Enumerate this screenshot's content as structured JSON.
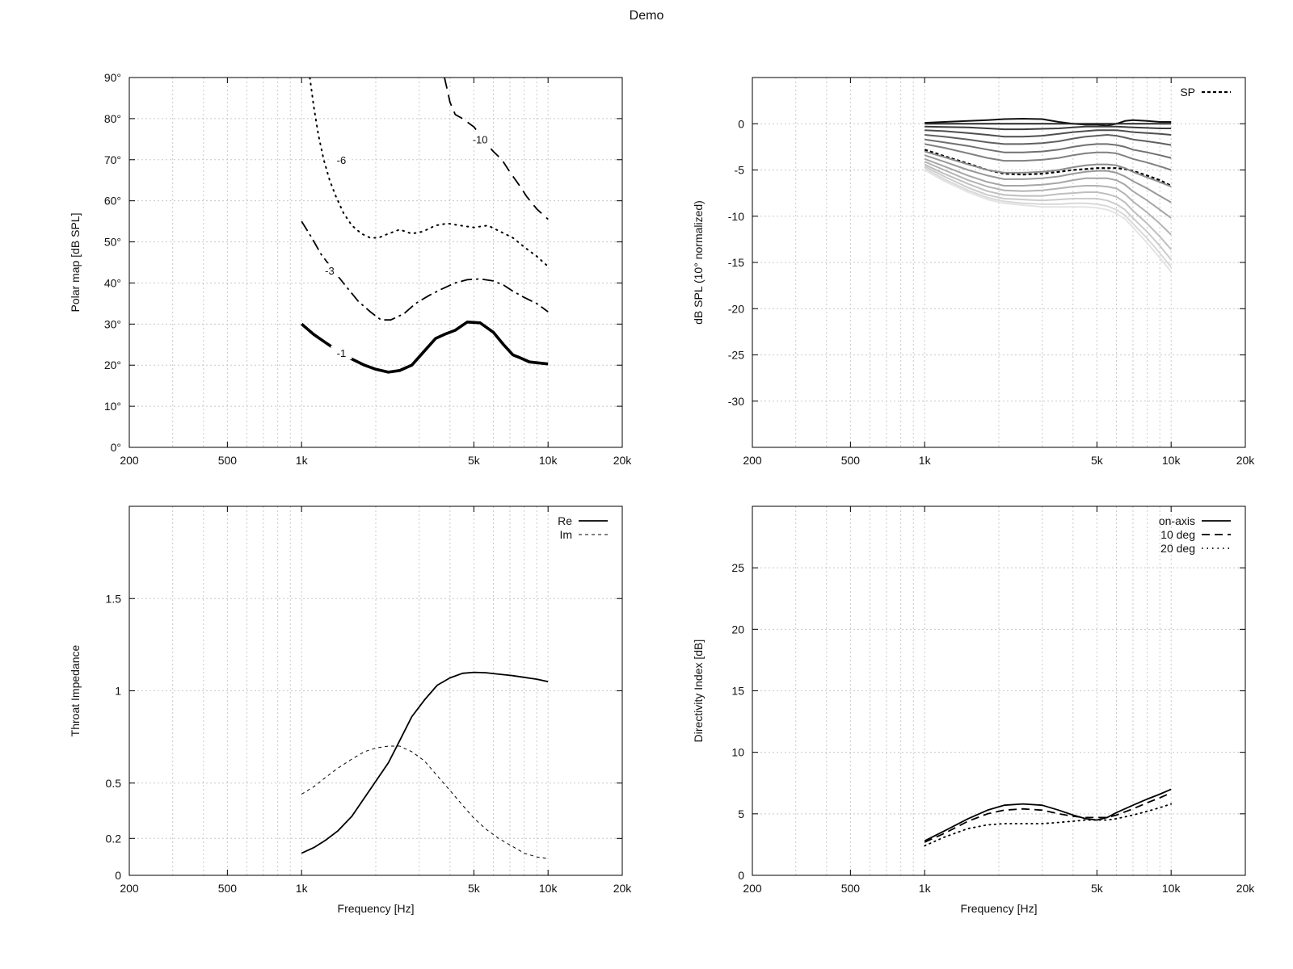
{
  "title": "Demo",
  "chart_data": [
    {
      "id": "polar-map",
      "type": "line",
      "subtype": "contour",
      "xscale": "log",
      "xlim": [
        200,
        20000
      ],
      "ylim": [
        0,
        90
      ],
      "xticks": [
        200,
        500,
        1000,
        5000,
        10000,
        20000
      ],
      "xtick_labels": [
        "200",
        "500",
        "1k",
        "5k",
        "10k",
        "20k"
      ],
      "yticks": [
        0,
        10,
        20,
        30,
        40,
        50,
        60,
        70,
        80,
        90
      ],
      "ytick_labels": [
        "0°",
        "10°",
        "20°",
        "30°",
        "40°",
        "50°",
        "60°",
        "70°",
        "80°",
        "90°"
      ],
      "xlabel": "",
      "ylabel": "Polar map [dB SPL]",
      "grid": true,
      "legend": "none",
      "series": [
        {
          "name": "-1",
          "label_at": [
            1450,
            23
          ],
          "style": "thick",
          "x": [
            1000,
            1120,
            1250,
            1400,
            1600,
            1800,
            2000,
            2250,
            2500,
            2800,
            3100,
            3500,
            3800,
            4200,
            4700,
            5300,
            6000,
            6600,
            7200,
            7700,
            8400,
            9300,
            10000
          ],
          "y": [
            30,
            27.5,
            25.5,
            23.5,
            21.5,
            20,
            19,
            18.3,
            18.7,
            20,
            23,
            26.5,
            27.5,
            28.5,
            30.5,
            30.3,
            28,
            25,
            22.5,
            21.8,
            20.8,
            20.5,
            20.3
          ]
        },
        {
          "name": "-3",
          "label_at": [
            1300,
            43
          ],
          "style": "dashdot",
          "x": [
            1000,
            1100,
            1200,
            1350,
            1500,
            1700,
            1900,
            2100,
            2300,
            2600,
            2900,
            3300,
            3700,
            4200,
            4700,
            5300,
            6000,
            6600,
            7200,
            8000,
            9000,
            10000
          ],
          "y": [
            55,
            51,
            47,
            43,
            39.5,
            35.5,
            33,
            31,
            31,
            32.5,
            35,
            37,
            38.5,
            40,
            40.8,
            41,
            40.5,
            39.5,
            38,
            36.5,
            35,
            33
          ]
        },
        {
          "name": "-6",
          "label_at": [
            1450,
            70
          ],
          "style": "dotted",
          "x": [
            1080,
            1120,
            1170,
            1230,
            1300,
            1380,
            1480,
            1600,
            1750,
            1900,
            2050,
            2250,
            2500,
            2800,
            3100,
            3500,
            3900,
            4400,
            5000,
            5700,
            6400,
            7200,
            8100,
            9000,
            10000
          ],
          "y": [
            90,
            83,
            76,
            70,
            65,
            61,
            57,
            54,
            52,
            51,
            51,
            52,
            53,
            52,
            52.5,
            54,
            54.5,
            54,
            53.5,
            54,
            52.5,
            51,
            48.5,
            46.5,
            44
          ]
        },
        {
          "name": "-10",
          "label_at": [
            5300,
            75
          ],
          "style": "dashed",
          "x": [
            3800,
            3900,
            4000,
            4200,
            4500,
            5000,
            5300,
            5600,
            6000,
            6500,
            7000,
            7600,
            8200,
            9000,
            10000
          ],
          "y": [
            90,
            87,
            84,
            81,
            80,
            78,
            76,
            74,
            72,
            70,
            67,
            64,
            61,
            58,
            55.5
          ]
        }
      ]
    },
    {
      "id": "normalized-response",
      "type": "line",
      "xscale": "log",
      "xlim": [
        200,
        20000
      ],
      "ylim": [
        -35,
        5
      ],
      "xticks": [
        200,
        500,
        1000,
        5000,
        10000,
        20000
      ],
      "xtick_labels": [
        "200",
        "500",
        "1k",
        "5k",
        "10k",
        "20k"
      ],
      "yticks": [
        0,
        -5,
        -10,
        -15,
        -20,
        -25,
        -30
      ],
      "ytick_labels": [
        "0",
        "-5",
        "-10",
        "-15",
        "-20",
        "-25",
        "-30"
      ],
      "xlabel": "",
      "ylabel": "dB SPL (10° normalized)",
      "grid": true,
      "legend": "top-right",
      "x": [
        1000,
        1200,
        1500,
        1800,
        2100,
        2500,
        3000,
        3500,
        4000,
        4500,
        5000,
        5500,
        6000,
        6500,
        7000,
        8000,
        9000,
        10000
      ],
      "series": [
        {
          "name": "",
          "color": "#111111",
          "values": [
            0.1,
            0.2,
            0.3,
            0.4,
            0.5,
            0.55,
            0.5,
            0.2,
            0.0,
            -0.1,
            -0.1,
            -0.2,
            0.0,
            0.3,
            0.4,
            0.3,
            0.2,
            0.2
          ]
        },
        {
          "name": "",
          "color": "#2a2a2a",
          "values": [
            0,
            0,
            0,
            0,
            0,
            0,
            0,
            0,
            0,
            0,
            0,
            0,
            0,
            0,
            0,
            0,
            0,
            0
          ]
        },
        {
          "name": "",
          "color": "#3c3c3c",
          "values": [
            -0.3,
            -0.35,
            -0.4,
            -0.5,
            -0.6,
            -0.6,
            -0.55,
            -0.5,
            -0.4,
            -0.3,
            -0.3,
            -0.3,
            -0.3,
            -0.35,
            -0.4,
            -0.45,
            -0.5,
            -0.5
          ]
        },
        {
          "name": "",
          "color": "#4e4e4e",
          "values": [
            -0.7,
            -0.8,
            -1.0,
            -1.2,
            -1.4,
            -1.4,
            -1.3,
            -1.1,
            -0.9,
            -0.8,
            -0.7,
            -0.7,
            -0.7,
            -0.8,
            -0.9,
            -1.0,
            -1.1,
            -1.2
          ]
        },
        {
          "name": "",
          "color": "#606060",
          "values": [
            -1.2,
            -1.4,
            -1.7,
            -2.0,
            -2.2,
            -2.2,
            -2.1,
            -1.9,
            -1.6,
            -1.4,
            -1.3,
            -1.2,
            -1.3,
            -1.5,
            -1.7,
            -1.9,
            -2.1,
            -2.3
          ]
        },
        {
          "name": "",
          "color": "#707070",
          "values": [
            -1.7,
            -2.0,
            -2.4,
            -2.8,
            -3.1,
            -3.1,
            -3.0,
            -2.8,
            -2.5,
            -2.3,
            -2.2,
            -2.2,
            -2.3,
            -2.5,
            -2.8,
            -3.1,
            -3.4,
            -3.7
          ]
        },
        {
          "name": "",
          "color": "#808080",
          "values": [
            -2.2,
            -2.6,
            -3.2,
            -3.7,
            -4.0,
            -4.0,
            -3.9,
            -3.7,
            -3.4,
            -3.2,
            -3.1,
            -3.1,
            -3.2,
            -3.5,
            -3.8,
            -4.2,
            -4.6,
            -5.0
          ]
        },
        {
          "name": "SP",
          "color": "#000000",
          "dashed": true,
          "values": [
            -2.8,
            -3.5,
            -4.3,
            -5.0,
            -5.4,
            -5.5,
            -5.4,
            -5.2,
            -5.0,
            -4.9,
            -4.8,
            -4.8,
            -4.8,
            -4.9,
            -5.1,
            -5.6,
            -6.1,
            -6.7
          ]
        },
        {
          "name": "",
          "color": "#8c8c8c",
          "values": [
            -3.0,
            -3.6,
            -4.4,
            -5.0,
            -5.3,
            -5.3,
            -5.2,
            -5.0,
            -4.7,
            -4.5,
            -4.4,
            -4.4,
            -4.5,
            -4.8,
            -5.2,
            -5.8,
            -6.3,
            -6.8
          ]
        },
        {
          "name": "",
          "color": "#999999",
          "values": [
            -3.4,
            -4.1,
            -5.0,
            -5.6,
            -6.0,
            -6.0,
            -5.9,
            -5.7,
            -5.4,
            -5.2,
            -5.1,
            -5.1,
            -5.3,
            -5.7,
            -6.2,
            -7.0,
            -7.8,
            -8.5
          ]
        },
        {
          "name": "",
          "color": "#a6a6a6",
          "values": [
            -3.8,
            -4.6,
            -5.6,
            -6.3,
            -6.7,
            -6.7,
            -6.6,
            -6.4,
            -6.1,
            -5.9,
            -5.9,
            -5.9,
            -6.1,
            -6.6,
            -7.3,
            -8.3,
            -9.3,
            -10.2
          ]
        },
        {
          "name": "",
          "color": "#b3b3b3",
          "values": [
            -4.1,
            -5.0,
            -6.1,
            -6.8,
            -7.2,
            -7.3,
            -7.2,
            -7.0,
            -6.8,
            -6.7,
            -6.7,
            -6.8,
            -7.0,
            -7.6,
            -8.4,
            -9.6,
            -10.8,
            -12.0
          ]
        },
        {
          "name": "",
          "color": "#bfbfbf",
          "values": [
            -4.4,
            -5.4,
            -6.5,
            -7.3,
            -7.7,
            -7.8,
            -7.8,
            -7.6,
            -7.5,
            -7.4,
            -7.4,
            -7.6,
            -7.9,
            -8.5,
            -9.4,
            -10.8,
            -12.2,
            -13.6
          ]
        },
        {
          "name": "",
          "color": "#cccccc",
          "values": [
            -4.6,
            -5.7,
            -6.9,
            -7.7,
            -8.1,
            -8.2,
            -8.3,
            -8.2,
            -8.1,
            -8.1,
            -8.1,
            -8.3,
            -8.7,
            -9.3,
            -10.2,
            -11.7,
            -13.2,
            -14.7
          ]
        },
        {
          "name": "",
          "color": "#d9d9d9",
          "values": [
            -4.8,
            -6.0,
            -7.2,
            -8.0,
            -8.4,
            -8.6,
            -8.7,
            -8.7,
            -8.6,
            -8.6,
            -8.7,
            -8.9,
            -9.3,
            -9.9,
            -10.8,
            -12.4,
            -14.0,
            -15.5
          ]
        },
        {
          "name": "",
          "color": "#e4e4e4",
          "values": [
            -5.0,
            -6.2,
            -7.4,
            -8.2,
            -8.6,
            -8.8,
            -9.0,
            -9.0,
            -9.0,
            -9.0,
            -9.1,
            -9.3,
            -9.7,
            -10.3,
            -11.2,
            -12.9,
            -14.5,
            -16.0
          ]
        }
      ]
    },
    {
      "id": "throat-impedance",
      "type": "line",
      "xscale": "log",
      "xlim": [
        200,
        20000
      ],
      "ylim": [
        0,
        2
      ],
      "xticks": [
        200,
        500,
        1000,
        5000,
        10000,
        20000
      ],
      "xtick_labels": [
        "200",
        "500",
        "1k",
        "5k",
        "10k",
        "20k"
      ],
      "yticks": [
        0,
        0.2,
        0.5,
        1,
        1.5
      ],
      "ytick_labels": [
        "0",
        "0.2",
        "0.5",
        "1",
        "1.5"
      ],
      "xlabel": "Frequency [Hz]",
      "ylabel": "Throat Impedance",
      "grid": true,
      "legend": "top-right",
      "x": [
        1000,
        1120,
        1250,
        1400,
        1600,
        1800,
        2000,
        2250,
        2500,
        2800,
        3150,
        3550,
        4000,
        4500,
        5000,
        5600,
        6300,
        7100,
        8000,
        9000,
        10000
      ],
      "series": [
        {
          "name": "Re",
          "style": "solid",
          "values": [
            0.12,
            0.15,
            0.19,
            0.24,
            0.32,
            0.42,
            0.51,
            0.61,
            0.73,
            0.86,
            0.95,
            1.03,
            1.07,
            1.095,
            1.1,
            1.098,
            1.09,
            1.083,
            1.073,
            1.063,
            1.05
          ]
        },
        {
          "name": "Im",
          "style": "dashed",
          "values": [
            0.44,
            0.48,
            0.53,
            0.58,
            0.63,
            0.67,
            0.69,
            0.7,
            0.7,
            0.67,
            0.62,
            0.54,
            0.46,
            0.38,
            0.31,
            0.25,
            0.2,
            0.16,
            0.12,
            0.1,
            0.09
          ]
        }
      ]
    },
    {
      "id": "directivity-index",
      "type": "line",
      "xscale": "log",
      "xlim": [
        200,
        20000
      ],
      "ylim": [
        0,
        30
      ],
      "xticks": [
        200,
        500,
        1000,
        5000,
        10000,
        20000
      ],
      "xtick_labels": [
        "200",
        "500",
        "1k",
        "5k",
        "10k",
        "20k"
      ],
      "yticks": [
        0,
        5,
        10,
        15,
        20,
        25
      ],
      "ytick_labels": [
        "0",
        "5",
        "10",
        "15",
        "20",
        "25"
      ],
      "xlabel": "Frequency [Hz]",
      "ylabel": "Directivity Index [dB]",
      "grid": true,
      "legend": "top-right",
      "x": [
        1000,
        1200,
        1500,
        1800,
        2100,
        2500,
        3000,
        3500,
        4000,
        4500,
        5000,
        5500,
        6000,
        7000,
        8000,
        9000,
        10000
      ],
      "series": [
        {
          "name": "on-axis",
          "style": "solid",
          "values": [
            2.8,
            3.6,
            4.6,
            5.3,
            5.7,
            5.8,
            5.7,
            5.3,
            4.9,
            4.6,
            4.5,
            4.7,
            5.1,
            5.7,
            6.2,
            6.6,
            7.0
          ]
        },
        {
          "name": "10 deg",
          "style": "dashed",
          "values": [
            2.7,
            3.4,
            4.4,
            5.0,
            5.3,
            5.4,
            5.3,
            5.0,
            4.8,
            4.7,
            4.7,
            4.7,
            4.9,
            5.4,
            5.9,
            6.3,
            6.7
          ]
        },
        {
          "name": "20 deg",
          "style": "dotted",
          "values": [
            2.4,
            3.1,
            3.8,
            4.1,
            4.2,
            4.2,
            4.2,
            4.3,
            4.4,
            4.5,
            4.5,
            4.5,
            4.6,
            4.9,
            5.2,
            5.5,
            5.8
          ]
        }
      ]
    }
  ]
}
